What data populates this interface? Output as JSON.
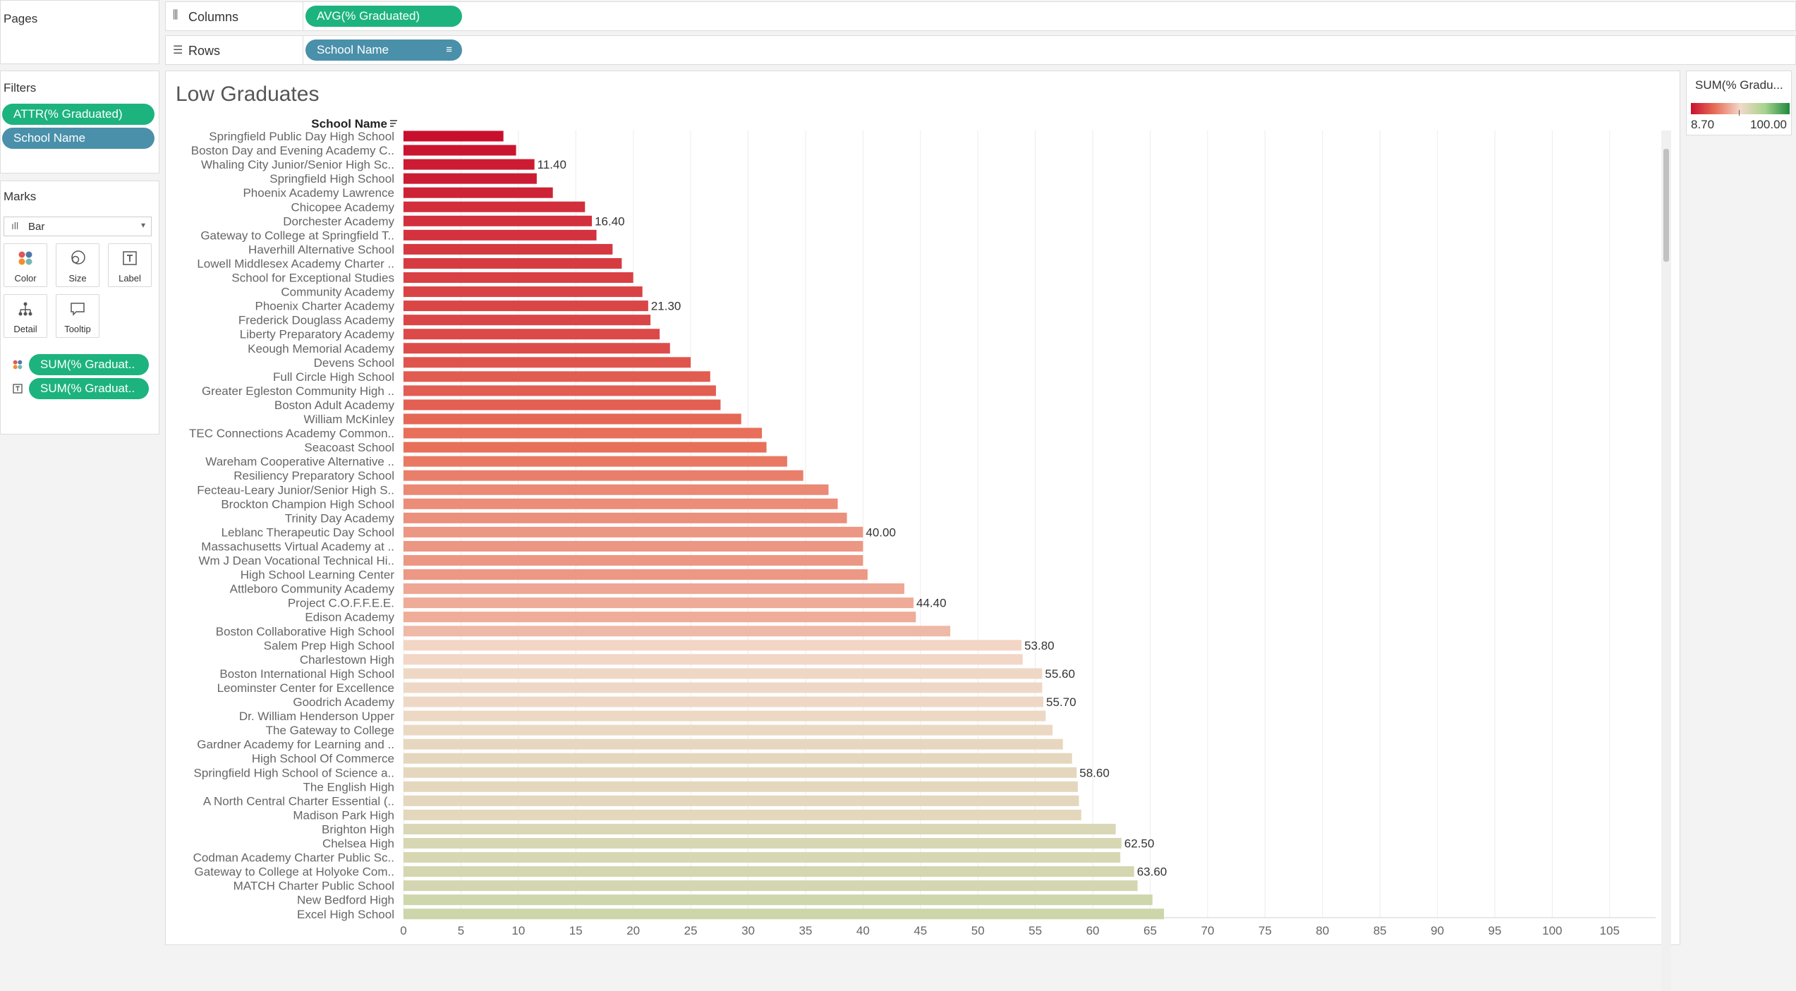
{
  "left": {
    "pages_title": "Pages",
    "filters_title": "Filters",
    "filters": [
      {
        "label": "ATTR(% Graduated)",
        "color": "#1db37f"
      },
      {
        "label": "School Name",
        "color": "#4a90aa"
      }
    ],
    "marks_title": "Marks",
    "mark_type": "Bar",
    "cards": [
      {
        "label": "Color",
        "icon": "color-dots-icon"
      },
      {
        "label": "Size",
        "icon": "size-icon"
      },
      {
        "label": "Label",
        "icon": "label-t-icon"
      },
      {
        "label": "Detail",
        "icon": "detail-tree-icon"
      },
      {
        "label": "Tooltip",
        "icon": "tooltip-bubble-icon"
      }
    ],
    "mark_pills": [
      {
        "label": "SUM(% Graduat..",
        "icon": "color-dots-icon"
      },
      {
        "label": "SUM(% Graduat..",
        "icon": "label-t-icon"
      }
    ]
  },
  "shelves": {
    "columns_label": "Columns",
    "columns_pill": "AVG(% Graduated)",
    "rows_label": "Rows",
    "rows_pill": "School Name"
  },
  "legend": {
    "title": "SUM(% Gradu...",
    "min": "8.70",
    "max": "100.00",
    "colors": [
      "#c8102e",
      "#e8705a",
      "#f2d8c8",
      "#a7d48e",
      "#1e8a3c"
    ]
  },
  "chart_data": {
    "type": "bar",
    "title": "Low Graduates",
    "ylabel": "School Name",
    "orientation": "horizontal",
    "xlim": [
      0,
      109
    ],
    "x_ticks": [
      0,
      5,
      10,
      15,
      20,
      25,
      30,
      35,
      40,
      45,
      50,
      55,
      60,
      65,
      70,
      75,
      80,
      85,
      90,
      95,
      100,
      105
    ],
    "categories": [
      "Springfield Public Day High School",
      "Boston Day and Evening Academy C..",
      "Whaling City Junior/Senior High Sc..",
      "Springfield High School",
      "Phoenix Academy Lawrence",
      "Chicopee Academy",
      "Dorchester Academy",
      "Gateway to College at Springfield T..",
      "Haverhill Alternative School",
      "Lowell Middlesex Academy Charter ..",
      "School for Exceptional Studies",
      "Community Academy",
      "Phoenix Charter Academy",
      "Frederick Douglass Academy",
      "Liberty Preparatory Academy",
      "Keough Memorial Academy",
      "Devens School",
      "Full Circle High School",
      "Greater Egleston Community High ..",
      "Boston Adult Academy",
      "William McKinley",
      "TEC Connections Academy Common..",
      "Seacoast School",
      "Wareham Cooperative Alternative ..",
      "Resiliency Preparatory School",
      "Fecteau-Leary Junior/Senior High S..",
      "Brockton Champion High School",
      "Trinity Day Academy",
      "Leblanc Therapeutic Day School",
      "Massachusetts Virtual Academy at ..",
      "Wm J Dean Vocational Technical Hi..",
      "High School Learning Center",
      "Attleboro Community Academy",
      "Project C.O.F.F.E.E.",
      "Edison Academy",
      "Boston Collaborative High School",
      "Salem Prep High School",
      "Charlestown High",
      "Boston International High School",
      "Leominster Center for Excellence",
      "Goodrich Academy",
      "Dr. William Henderson Upper",
      "The Gateway to College",
      "Gardner Academy for Learning and ..",
      "High School Of Commerce",
      "Springfield High School of Science a..",
      "The English High",
      "A North Central Charter Essential (..",
      "Madison Park High",
      "Brighton High",
      "Chelsea High",
      "Codman Academy Charter Public Sc..",
      "Gateway to College at Holyoke Com..",
      "MATCH Charter Public School",
      "New Bedford High",
      "Excel High School"
    ],
    "values": [
      8.7,
      9.8,
      11.4,
      11.6,
      13.0,
      15.8,
      16.4,
      16.8,
      18.2,
      19.0,
      20.0,
      20.8,
      21.3,
      21.5,
      22.3,
      23.2,
      25.0,
      26.7,
      27.2,
      27.6,
      29.4,
      31.2,
      31.6,
      33.4,
      34.8,
      37.0,
      37.8,
      38.6,
      40.0,
      40.0,
      40.0,
      40.4,
      43.6,
      44.4,
      44.6,
      47.6,
      53.8,
      53.9,
      55.6,
      55.6,
      55.7,
      55.9,
      56.5,
      57.4,
      58.2,
      58.6,
      58.7,
      58.8,
      59.0,
      62.0,
      62.5,
      62.4,
      63.6,
      63.9,
      65.2,
      66.2
    ],
    "data_labels": [
      {
        "index": 2,
        "text": "11.40"
      },
      {
        "index": 6,
        "text": "16.40"
      },
      {
        "index": 12,
        "text": "21.30"
      },
      {
        "index": 28,
        "text": "40.00"
      },
      {
        "index": 33,
        "text": "44.40"
      },
      {
        "index": 36,
        "text": "53.80"
      },
      {
        "index": 38,
        "text": "55.60"
      },
      {
        "index": 40,
        "text": "55.70"
      },
      {
        "index": 45,
        "text": "58.60"
      },
      {
        "index": 50,
        "text": "62.50"
      },
      {
        "index": 52,
        "text": "63.60"
      }
    ],
    "grid": true,
    "legend": "right"
  }
}
